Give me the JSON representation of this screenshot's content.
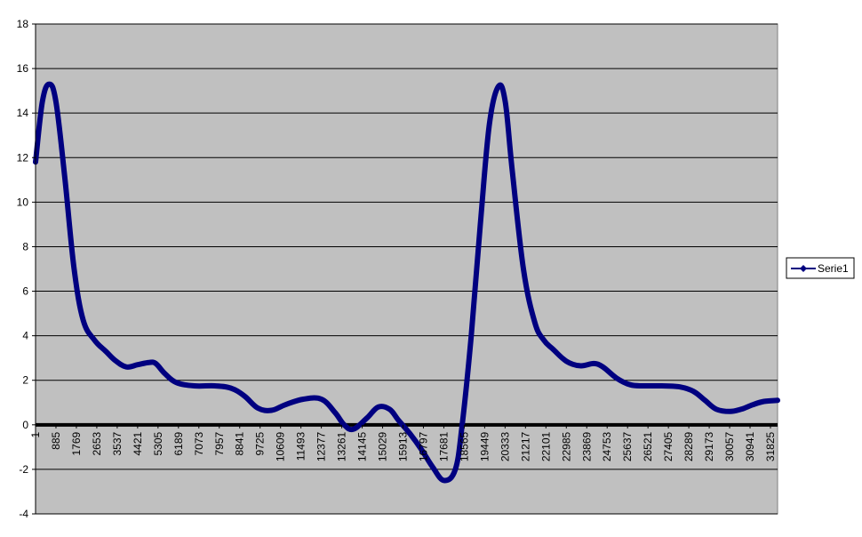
{
  "chart_data": {
    "type": "line",
    "title": "",
    "xlabel": "",
    "ylabel": "",
    "ylim": [
      -4,
      18
    ],
    "yticks": [
      -4,
      -2,
      0,
      2,
      4,
      6,
      8,
      10,
      12,
      14,
      16,
      18
    ],
    "xlim": [
      1,
      32700
    ],
    "xticks": [
      "1",
      "885",
      "1769",
      "2653",
      "3537",
      "4421",
      "5305",
      "6189",
      "7073",
      "7957",
      "8841",
      "9725",
      "10609",
      "11493",
      "12377",
      "13261",
      "14145",
      "15029",
      "15913",
      "16797",
      "17681",
      "18565",
      "19449",
      "20333",
      "21217",
      "22101",
      "22985",
      "23869",
      "24753",
      "25637",
      "26521",
      "27405",
      "28289",
      "29173",
      "30057",
      "30941",
      "31825"
    ],
    "grid": true,
    "legend": "right",
    "colors": {
      "plot_bg": "#c0c0c0",
      "series": "#000080",
      "grid": "#000000"
    },
    "series": [
      {
        "name": "Serie1",
        "x": [
          1,
          300,
          600,
          900,
          1300,
          1700,
          2100,
          2600,
          3100,
          3500,
          4000,
          4500,
          5000,
          5300,
          5700,
          6200,
          7000,
          7900,
          8600,
          9200,
          9800,
          10400,
          11000,
          11800,
          12600,
          13200,
          13600,
          14000,
          14600,
          15100,
          15600,
          16000,
          16500,
          17000,
          17500,
          18000,
          18500,
          18800,
          19200,
          19600,
          20000,
          20400,
          20700,
          21000,
          21500,
          22000,
          22400,
          22800,
          23400,
          24000,
          24600,
          25000,
          25600,
          26200,
          26800,
          27600,
          28400,
          29000,
          29500,
          30000,
          30600,
          31100,
          31600,
          32100,
          32700
        ],
        "y": [
          11.8,
          14.5,
          15.3,
          14.5,
          11.0,
          7.0,
          4.7,
          3.8,
          3.3,
          2.9,
          2.6,
          2.7,
          2.8,
          2.75,
          2.3,
          1.9,
          1.75,
          1.75,
          1.65,
          1.3,
          0.75,
          0.65,
          0.9,
          1.15,
          1.15,
          0.55,
          0.0,
          -0.2,
          0.3,
          0.8,
          0.7,
          0.2,
          -0.4,
          -1.1,
          -1.9,
          -2.5,
          -2.0,
          0.0,
          4.0,
          9.0,
          13.5,
          15.2,
          14.5,
          11.5,
          7.0,
          4.6,
          3.8,
          3.4,
          2.85,
          2.65,
          2.75,
          2.6,
          2.1,
          1.8,
          1.75,
          1.75,
          1.7,
          1.5,
          1.1,
          0.7,
          0.6,
          0.7,
          0.9,
          1.05,
          1.1
        ]
      }
    ]
  }
}
